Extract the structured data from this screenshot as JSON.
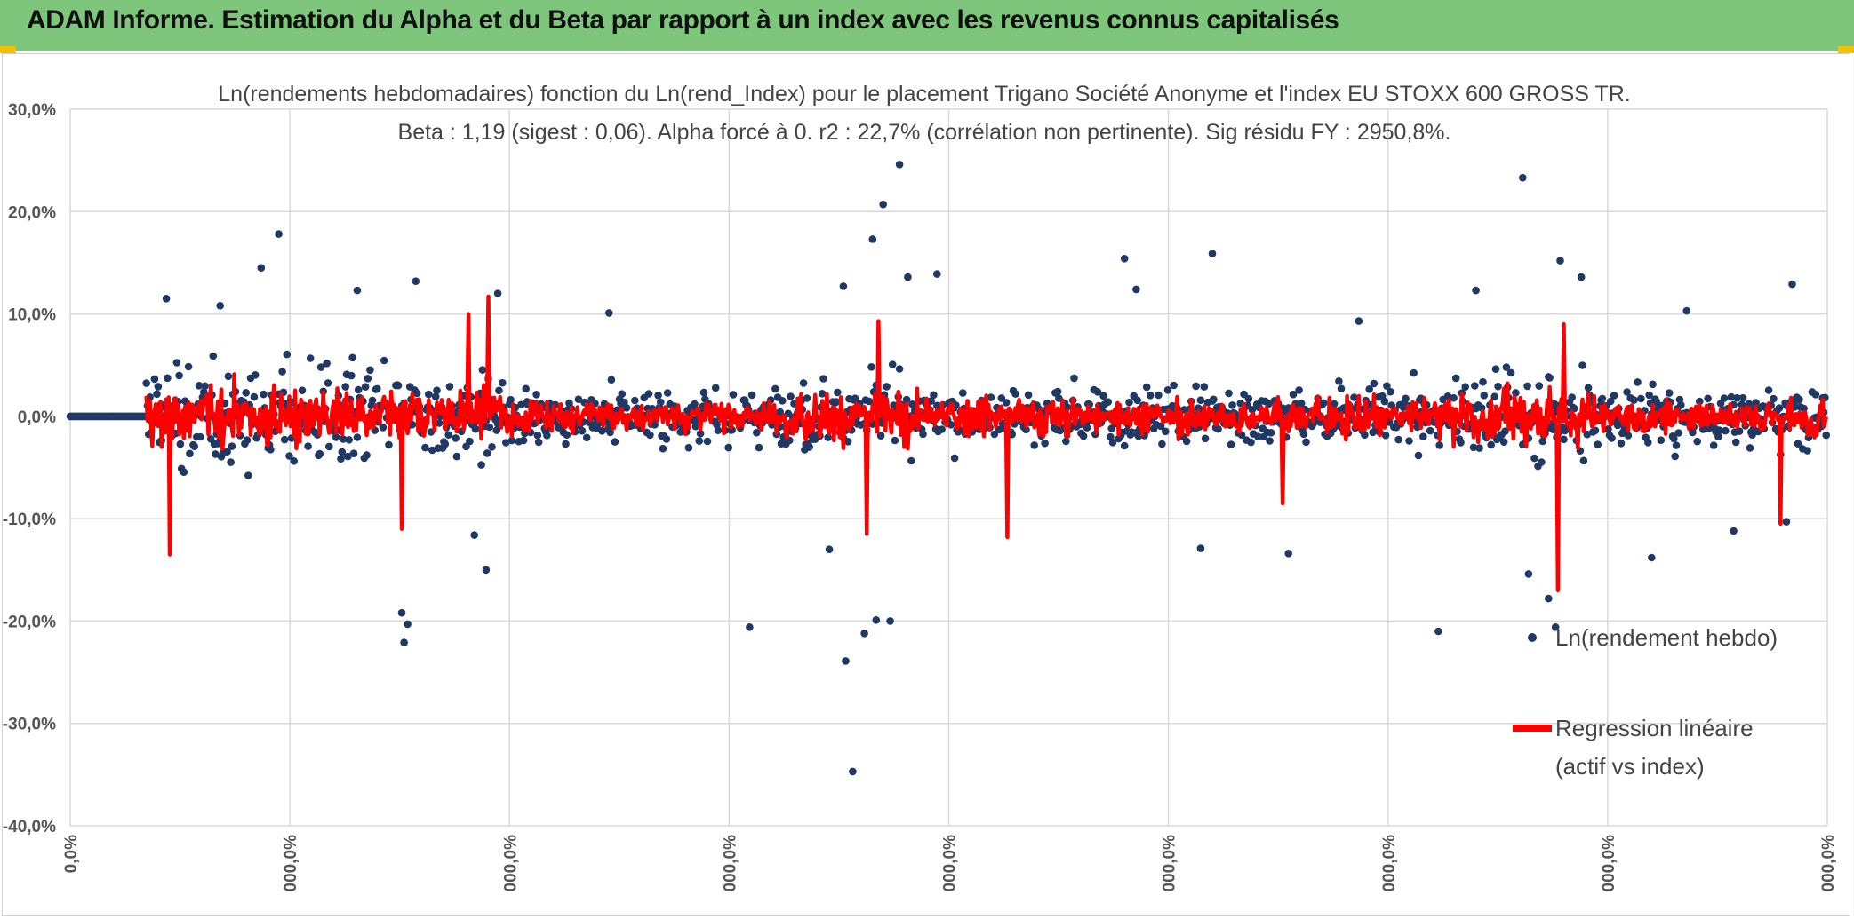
{
  "header": {
    "title": "ADAM Informe. Estimation du Alpha et du Beta par rapport à un index avec les revenus connus capitalisés"
  },
  "colors": {
    "banner": "#7dc67c",
    "points": "#203864",
    "regression": "#ff0000",
    "grid": "#d9d9d9"
  },
  "chart_data": {
    "type": "scatter",
    "title": "Ln(rendements hebdomadaires) fonction du Ln(rend_Index) pour le placement Trigano Société Anonyme et l'index EU STOXX 600 GROSS TR.",
    "subtitle": "Beta : 1,19 (sigest : 0,06). Alpha forcé à 0. r2 : 22,7% (corrélation non pertinente). Sig résidu FY : 2950,8%.",
    "ylim": [
      -40,
      30
    ],
    "y_ticks": [
      30,
      20,
      10,
      0,
      -10,
      -20,
      -30,
      -40
    ],
    "y_tick_labels": [
      "30,0%",
      "20,0%",
      "10,0%",
      "0,0%",
      "-10,0%",
      "-20,0%",
      "-30,0%",
      "-40,0%"
    ],
    "x_tick_labels": [
      "0,0%",
      "000,0%",
      "000,0%",
      "000,0%",
      "000,0%",
      "000,0%",
      "000,0%",
      "000,0%",
      "000,0%"
    ],
    "x_count": 1500,
    "flat_segment_end": 65,
    "series": [
      {
        "name": "Ln(rendement hebdo)",
        "kind": "points",
        "color": "#203864"
      },
      {
        "name": "Regression linéaire",
        "name_line2": "(actif vs index)",
        "kind": "line",
        "color": "#ff0000"
      }
    ],
    "notable_points": [
      {
        "x": 82,
        "y": 11.5
      },
      {
        "x": 178,
        "y": 17.8
      },
      {
        "x": 128,
        "y": 10.8
      },
      {
        "x": 163,
        "y": 14.5
      },
      {
        "x": 285,
        "y": -22.1
      },
      {
        "x": 283,
        "y": -19.2
      },
      {
        "x": 288,
        "y": -20.3
      },
      {
        "x": 295,
        "y": 13.2
      },
      {
        "x": 355,
        "y": -15.0
      },
      {
        "x": 345,
        "y": -11.6
      },
      {
        "x": 365,
        "y": 12.0
      },
      {
        "x": 245,
        "y": 12.3
      },
      {
        "x": 460,
        "y": 10.1
      },
      {
        "x": 580,
        "y": -20.6
      },
      {
        "x": 648,
        "y": -13.0
      },
      {
        "x": 660,
        "y": 12.7
      },
      {
        "x": 662,
        "y": -23.9
      },
      {
        "x": 668,
        "y": -34.7
      },
      {
        "x": 678,
        "y": -21.2
      },
      {
        "x": 688,
        "y": -19.9
      },
      {
        "x": 700,
        "y": -20.0
      },
      {
        "x": 708,
        "y": 24.6
      },
      {
        "x": 694,
        "y": 20.7
      },
      {
        "x": 685,
        "y": 17.3
      },
      {
        "x": 715,
        "y": 13.6
      },
      {
        "x": 740,
        "y": 13.9
      },
      {
        "x": 900,
        "y": 15.4
      },
      {
        "x": 910,
        "y": 12.4
      },
      {
        "x": 975,
        "y": 15.9
      },
      {
        "x": 965,
        "y": -12.9
      },
      {
        "x": 1040,
        "y": -13.4
      },
      {
        "x": 1100,
        "y": 9.3
      },
      {
        "x": 1168,
        "y": -21.0
      },
      {
        "x": 1200,
        "y": 12.3
      },
      {
        "x": 1240,
        "y": 23.3
      },
      {
        "x": 1245,
        "y": -15.4
      },
      {
        "x": 1262,
        "y": -17.8
      },
      {
        "x": 1268,
        "y": -20.6
      },
      {
        "x": 1272,
        "y": 15.2
      },
      {
        "x": 1290,
        "y": 13.6
      },
      {
        "x": 1350,
        "y": -13.8
      },
      {
        "x": 1380,
        "y": 10.3
      },
      {
        "x": 1420,
        "y": -11.2
      },
      {
        "x": 1470,
        "y": 12.9
      },
      {
        "x": 1465,
        "y": -10.3
      }
    ],
    "notable_regression": [
      {
        "x": 85,
        "y": -13.5
      },
      {
        "x": 283,
        "y": -11.0
      },
      {
        "x": 340,
        "y": 10.0
      },
      {
        "x": 357,
        "y": 11.7
      },
      {
        "x": 680,
        "y": -11.5
      },
      {
        "x": 690,
        "y": 9.3
      },
      {
        "x": 800,
        "y": -11.8
      },
      {
        "x": 1035,
        "y": -8.5
      },
      {
        "x": 1270,
        "y": -17.0
      },
      {
        "x": 1275,
        "y": 9.0
      },
      {
        "x": 1460,
        "y": -10.5
      }
    ]
  },
  "legend": {
    "points_label": "Ln(rendement hebdo)",
    "line_label_1": "Regression linéaire",
    "line_label_2": "(actif vs index)"
  }
}
